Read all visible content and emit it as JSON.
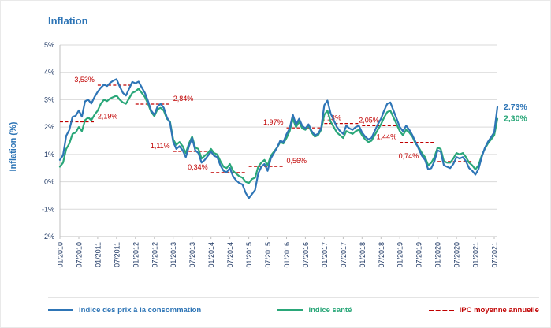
{
  "title": "Inflation",
  "colors": {
    "cpi": "#2E75B6",
    "health": "#2AA779",
    "average": "#C00000",
    "grid": "#D9D9D9",
    "axis": "#BFBFBF",
    "tick_text": "#1F3864",
    "title_text": "#2E75B6"
  },
  "y_axis": {
    "label": "Inflation (%)",
    "min": -2,
    "max": 5,
    "tick_labels": [
      "5%",
      "4%",
      "3%",
      "2%",
      "1%",
      "0%",
      "-1%",
      "-2%"
    ]
  },
  "x_axis": {
    "tick_labels": [
      "01/2010",
      "07/2010",
      "01/2011",
      "07/2011",
      "01/2012",
      "07/2012",
      "01/2013",
      "07/2013",
      "01/2014",
      "07/2014",
      "01/2015",
      "07/2015",
      "01/2016",
      "07/2016",
      "01/2017",
      "07/2017",
      "01/2018",
      "07/2018",
      "01/2019",
      "07/2019",
      "01/2020",
      "07/2020",
      "01/2021",
      "07/2021"
    ],
    "tick_step_months": 6
  },
  "end_labels": {
    "cpi": "2.73%",
    "health": "2,30%"
  },
  "legend": {
    "cpi": "Indice des prix à la consommation",
    "health": "Indice santé",
    "average": "IPC moyenne annuelle"
  },
  "chart_data": {
    "type": "line",
    "title": "Inflation",
    "ylabel": "Inflation (%)",
    "ylim": [
      -2,
      5
    ],
    "grid": "horizontal",
    "legend_position": "bottom",
    "x_start": "01/2010",
    "x_frequency": "monthly",
    "start_year": 2010,
    "series": [
      {
        "id": "cpi",
        "name": "Indice des prix à la consommation",
        "color": "#2E75B6",
        "values": [
          0.8,
          0.97,
          1.68,
          1.9,
          2.37,
          2.41,
          2.61,
          2.38,
          2.94,
          3.0,
          2.86,
          3.1,
          3.29,
          3.44,
          3.55,
          3.5,
          3.62,
          3.7,
          3.75,
          3.48,
          3.25,
          3.15,
          3.4,
          3.65,
          3.6,
          3.66,
          3.45,
          3.25,
          2.95,
          2.6,
          2.45,
          2.75,
          2.85,
          2.7,
          2.35,
          2.15,
          1.46,
          1.2,
          1.3,
          1.15,
          0.9,
          1.3,
          1.6,
          1.15,
          1.05,
          0.7,
          0.8,
          0.95,
          1.1,
          0.95,
          0.9,
          0.6,
          0.4,
          0.35,
          0.5,
          0.2,
          0.05,
          -0.05,
          -0.1,
          -0.4,
          -0.6,
          -0.45,
          -0.3,
          0.3,
          0.55,
          0.65,
          0.4,
          0.85,
          1.05,
          1.25,
          1.5,
          1.45,
          1.74,
          1.95,
          2.45,
          2.1,
          2.3,
          2.05,
          1.95,
          2.1,
          1.85,
          1.7,
          1.75,
          1.95,
          2.8,
          2.97,
          2.5,
          2.25,
          2.0,
          1.85,
          1.75,
          2.05,
          1.95,
          1.9,
          2.0,
          2.05,
          1.8,
          1.65,
          1.55,
          1.6,
          1.85,
          2.1,
          2.3,
          2.6,
          2.85,
          2.9,
          2.6,
          2.3,
          2.0,
          1.85,
          2.05,
          1.9,
          1.7,
          1.45,
          1.2,
          0.95,
          0.8,
          0.45,
          0.5,
          0.75,
          1.15,
          1.1,
          0.6,
          0.55,
          0.5,
          0.65,
          0.9,
          0.85,
          0.9,
          0.75,
          0.5,
          0.4,
          0.26,
          0.46,
          0.89,
          1.23,
          1.46,
          1.63,
          1.81,
          2.73
        ]
      },
      {
        "id": "health",
        "name": "Indice santé",
        "color": "#2AA779",
        "values": [
          0.55,
          0.7,
          1.2,
          1.4,
          1.75,
          1.8,
          2.0,
          1.85,
          2.25,
          2.35,
          2.25,
          2.45,
          2.6,
          2.85,
          3.0,
          2.95,
          3.05,
          3.1,
          3.15,
          3.0,
          2.9,
          2.85,
          3.05,
          3.25,
          3.3,
          3.4,
          3.25,
          3.1,
          2.85,
          2.55,
          2.4,
          2.65,
          2.7,
          2.6,
          2.3,
          2.2,
          1.55,
          1.35,
          1.45,
          1.3,
          1.05,
          1.4,
          1.65,
          1.25,
          1.2,
          0.85,
          0.95,
          1.05,
          1.2,
          1.05,
          1.0,
          0.75,
          0.55,
          0.5,
          0.65,
          0.4,
          0.3,
          0.2,
          0.15,
          0.0,
          -0.05,
          0.1,
          0.15,
          0.55,
          0.7,
          0.8,
          0.6,
          0.95,
          1.1,
          1.25,
          1.45,
          1.4,
          1.6,
          1.85,
          2.3,
          2.0,
          2.2,
          1.95,
          1.9,
          2.05,
          1.8,
          1.65,
          1.7,
          1.9,
          2.45,
          2.6,
          2.2,
          2.0,
          1.8,
          1.7,
          1.6,
          1.85,
          1.8,
          1.75,
          1.85,
          1.9,
          1.7,
          1.55,
          1.45,
          1.5,
          1.7,
          1.9,
          2.1,
          2.35,
          2.55,
          2.6,
          2.35,
          2.1,
          1.85,
          1.7,
          1.9,
          1.8,
          1.65,
          1.4,
          1.25,
          1.05,
          0.9,
          0.6,
          0.7,
          0.9,
          1.25,
          1.2,
          0.75,
          0.7,
          0.7,
          0.85,
          1.05,
          1.0,
          1.05,
          0.9,
          0.7,
          0.6,
          0.45,
          0.6,
          0.95,
          1.2,
          1.4,
          1.55,
          1.7,
          2.3
        ]
      }
    ],
    "annual_averages": [
      {
        "year": 2010,
        "value": 2.19,
        "label": "2,19%",
        "side": "right"
      },
      {
        "year": 2011,
        "value": 3.53,
        "label": "3,53%",
        "side": "left"
      },
      {
        "year": 2012,
        "value": 2.84,
        "label": "2,84%",
        "side": "right"
      },
      {
        "year": 2013,
        "value": 1.11,
        "label": "1,11%",
        "side": "left"
      },
      {
        "year": 2014,
        "value": 0.34,
        "label": "0,34%",
        "side": "left"
      },
      {
        "year": 2015,
        "value": 0.56,
        "label": "0,56%",
        "side": "right"
      },
      {
        "year": 2016,
        "value": 1.97,
        "label": "1,97%",
        "side": "left"
      },
      {
        "year": 2017,
        "value": 2.13,
        "label": "2,13%",
        "side": "start"
      },
      {
        "year": 2018,
        "value": 2.05,
        "label": "2,05%",
        "side": "start"
      },
      {
        "year": 2019,
        "value": 1.44,
        "label": "1,44%",
        "side": "left"
      },
      {
        "year": 2020,
        "value": 0.74,
        "label": "0,74%",
        "side": "left",
        "dx": -20
      }
    ],
    "end_values": {
      "cpi": 2.73,
      "health": 2.3
    }
  }
}
